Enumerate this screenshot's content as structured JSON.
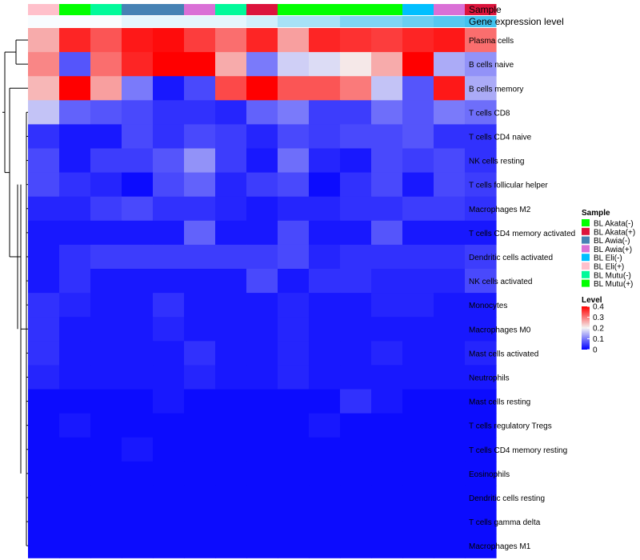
{
  "chart_data": {
    "type": "heatmap",
    "annotation_tracks": [
      "Sample",
      "Gene expression level"
    ],
    "rows": [
      "Plasma cells",
      "B cells naive",
      "B cells memory",
      "T cells CD8",
      "T cells CD4 naive",
      "NK cells resting",
      "T cells follicular helper",
      "Macrophages M2",
      "T cells CD4 memory activated",
      "Dendritic cells activated",
      "NK cells activated",
      "Monocytes",
      "Macrophages M0",
      "Mast cells activated",
      "Neutrophils",
      "Mast cells resting",
      "T cells regulatory  Tregs",
      "T cells CD4 memory resting",
      "Eosinophils",
      "Dendritic cells resting",
      "T cells gamma delta",
      "Macrophages M1"
    ],
    "column_samples": [
      "BL Eli(+)",
      "BL Akata(-)",
      "BL Mutu(-)",
      "BL Awia(-)",
      "BL Awia(-)",
      "BL Awia(+)",
      "BL Mutu(-)",
      "BL Akata(+)",
      "BL Mutu(+)",
      "BL Mutu(+)",
      "BL Mutu(+)",
      "BL Akata(-)",
      "BL Eli(-)",
      "BL Awia(+)",
      "BL Akata(+)"
    ],
    "expression_levels": [
      0.01,
      0.01,
      0.01,
      0.02,
      0.02,
      0.02,
      0.02,
      0.03,
      0.05,
      0.05,
      0.07,
      0.07,
      0.08,
      0.09,
      0.1
    ],
    "values": [
      [
        0.26,
        0.37,
        0.33,
        0.38,
        0.39,
        0.35,
        0.31,
        0.37,
        0.27,
        0.37,
        0.36,
        0.35,
        0.37,
        0.38,
        0.31
      ],
      [
        0.29,
        0.07,
        0.31,
        0.37,
        0.4,
        0.4,
        0.26,
        0.1,
        0.17,
        0.18,
        0.21,
        0.26,
        0.4,
        0.14,
        0.12
      ],
      [
        0.25,
        0.4,
        0.27,
        0.1,
        0.02,
        0.06,
        0.34,
        0.4,
        0.33,
        0.33,
        0.3,
        0.16,
        0.07,
        0.38,
        0.14
      ],
      [
        0.16,
        0.08,
        0.07,
        0.06,
        0.04,
        0.04,
        0.03,
        0.08,
        0.1,
        0.05,
        0.05,
        0.09,
        0.07,
        0.1,
        0.09
      ],
      [
        0.04,
        0.02,
        0.02,
        0.06,
        0.04,
        0.06,
        0.05,
        0.03,
        0.06,
        0.05,
        0.06,
        0.06,
        0.07,
        0.04,
        0.04
      ],
      [
        0.06,
        0.02,
        0.05,
        0.05,
        0.07,
        0.12,
        0.05,
        0.02,
        0.09,
        0.03,
        0.02,
        0.06,
        0.05,
        0.06,
        0.04
      ],
      [
        0.06,
        0.04,
        0.03,
        0.01,
        0.06,
        0.08,
        0.03,
        0.05,
        0.06,
        0.01,
        0.04,
        0.06,
        0.02,
        0.06,
        0.05
      ],
      [
        0.03,
        0.03,
        0.05,
        0.06,
        0.04,
        0.04,
        0.03,
        0.02,
        0.03,
        0.03,
        0.04,
        0.04,
        0.05,
        0.05,
        0.04
      ],
      [
        0.02,
        0.02,
        0.02,
        0.02,
        0.02,
        0.08,
        0.02,
        0.02,
        0.06,
        0.02,
        0.02,
        0.07,
        0.02,
        0.02,
        0.02
      ],
      [
        0.02,
        0.04,
        0.05,
        0.05,
        0.05,
        0.05,
        0.05,
        0.05,
        0.06,
        0.03,
        0.04,
        0.04,
        0.04,
        0.04,
        0.05
      ],
      [
        0.02,
        0.04,
        0.02,
        0.02,
        0.02,
        0.02,
        0.02,
        0.06,
        0.02,
        0.04,
        0.04,
        0.03,
        0.03,
        0.03,
        0.06
      ],
      [
        0.04,
        0.03,
        0.02,
        0.02,
        0.04,
        0.02,
        0.02,
        0.02,
        0.03,
        0.02,
        0.02,
        0.03,
        0.03,
        0.02,
        0.02
      ],
      [
        0.04,
        0.02,
        0.02,
        0.02,
        0.03,
        0.02,
        0.02,
        0.02,
        0.03,
        0.02,
        0.02,
        0.02,
        0.02,
        0.02,
        0.02
      ],
      [
        0.04,
        0.02,
        0.02,
        0.02,
        0.02,
        0.04,
        0.02,
        0.02,
        0.03,
        0.02,
        0.02,
        0.03,
        0.02,
        0.02,
        0.03
      ],
      [
        0.03,
        0.02,
        0.02,
        0.02,
        0.02,
        0.03,
        0.02,
        0.02,
        0.03,
        0.02,
        0.02,
        0.02,
        0.02,
        0.02,
        0.02
      ],
      [
        0.01,
        0.01,
        0.01,
        0.01,
        0.02,
        0.01,
        0.01,
        0.01,
        0.01,
        0.01,
        0.04,
        0.02,
        0.01,
        0.01,
        0.01
      ],
      [
        0.01,
        0.02,
        0.01,
        0.01,
        0.01,
        0.01,
        0.01,
        0.01,
        0.01,
        0.02,
        0.01,
        0.01,
        0.01,
        0.01,
        0.01
      ],
      [
        0.01,
        0.01,
        0.01,
        0.02,
        0.01,
        0.01,
        0.01,
        0.01,
        0.01,
        0.01,
        0.01,
        0.01,
        0.01,
        0.01,
        0.01
      ],
      [
        0.01,
        0.01,
        0.01,
        0.01,
        0.01,
        0.01,
        0.01,
        0.01,
        0.01,
        0.01,
        0.01,
        0.01,
        0.01,
        0.01,
        0.01
      ],
      [
        0.01,
        0.01,
        0.01,
        0.01,
        0.01,
        0.01,
        0.01,
        0.01,
        0.01,
        0.01,
        0.01,
        0.01,
        0.01,
        0.01,
        0.01
      ],
      [
        0.01,
        0.01,
        0.01,
        0.01,
        0.01,
        0.01,
        0.01,
        0.01,
        0.01,
        0.01,
        0.01,
        0.01,
        0.01,
        0.01,
        0.01
      ],
      [
        0.01,
        0.01,
        0.01,
        0.01,
        0.01,
        0.01,
        0.01,
        0.01,
        0.01,
        0.01,
        0.01,
        0.01,
        0.01,
        0.01,
        0.01
      ]
    ],
    "color_scale": {
      "min": 0,
      "mid": 0.2,
      "max": 0.4,
      "low_color": "#0000ff",
      "mid_color": "#f4f4f4",
      "high_color": "#ff0000"
    },
    "expression_scale": {
      "low_color": "#f8fcff",
      "high_color": "#42c2ee"
    },
    "legend": {
      "sample_title": "Sample",
      "sample_entries": [
        {
          "label": "BL Akata(-)",
          "color": "#00ff00"
        },
        {
          "label": "BL Akata(+)",
          "color": "#dc143c"
        },
        {
          "label": "BL Awia(-)",
          "color": "#4682b4"
        },
        {
          "label": "BL Awia(+)",
          "color": "#da70d6"
        },
        {
          "label": "BL Eli(-)",
          "color": "#00bfff"
        },
        {
          "label": "BL Eli(+)",
          "color": "#ffc0cb"
        },
        {
          "label": "BL Mutu(-)",
          "color": "#00fa9a"
        },
        {
          "label": "BL Mutu(+)",
          "color": "#00ff00"
        }
      ],
      "level_title": "Level",
      "level_ticks": [
        "0.4",
        "0.3",
        "0.2",
        "0.1",
        "0"
      ],
      "level_tick_values": [
        0.4,
        0.3,
        0.2,
        0.1,
        0
      ],
      "placement": "right"
    },
    "row_dendrogram": true,
    "grid": false
  }
}
